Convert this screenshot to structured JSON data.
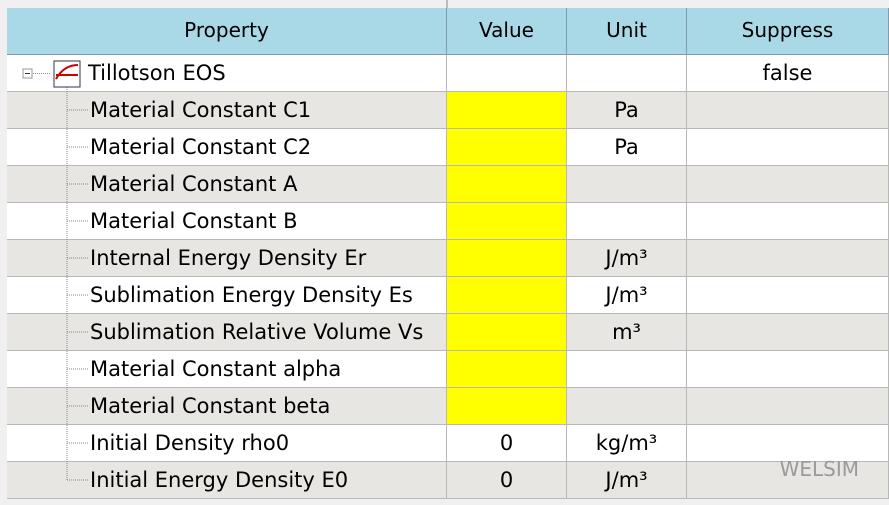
{
  "header": {
    "columns": [
      "Property",
      "Value",
      "Unit",
      "Suppress"
    ]
  },
  "tree": {
    "root": {
      "property": "Tillotson EOS",
      "suppress": "false"
    },
    "rows": [
      {
        "property": "Material Constant C1",
        "unit": "Pa"
      },
      {
        "property": "Material Constant C2",
        "unit": "Pa"
      },
      {
        "property": "Material Constant A"
      },
      {
        "property": "Material Constant B"
      },
      {
        "property": "Internal Energy Density Er",
        "unit": "J/m³"
      },
      {
        "property": "Sublimation Energy Density Es",
        "unit": "J/m³"
      },
      {
        "property": "Sublimation Relative Volume Vs",
        "unit": "m³"
      },
      {
        "property": "Material Constant alpha"
      },
      {
        "property": "Material Constant beta"
      },
      {
        "property": "Initial Density rho0",
        "value": 0,
        "unit": "kg/m³"
      },
      {
        "property": "Initial Energy Density E0",
        "value": 0,
        "unit": "J/m³"
      }
    ]
  },
  "watermark": "WELSIM"
}
